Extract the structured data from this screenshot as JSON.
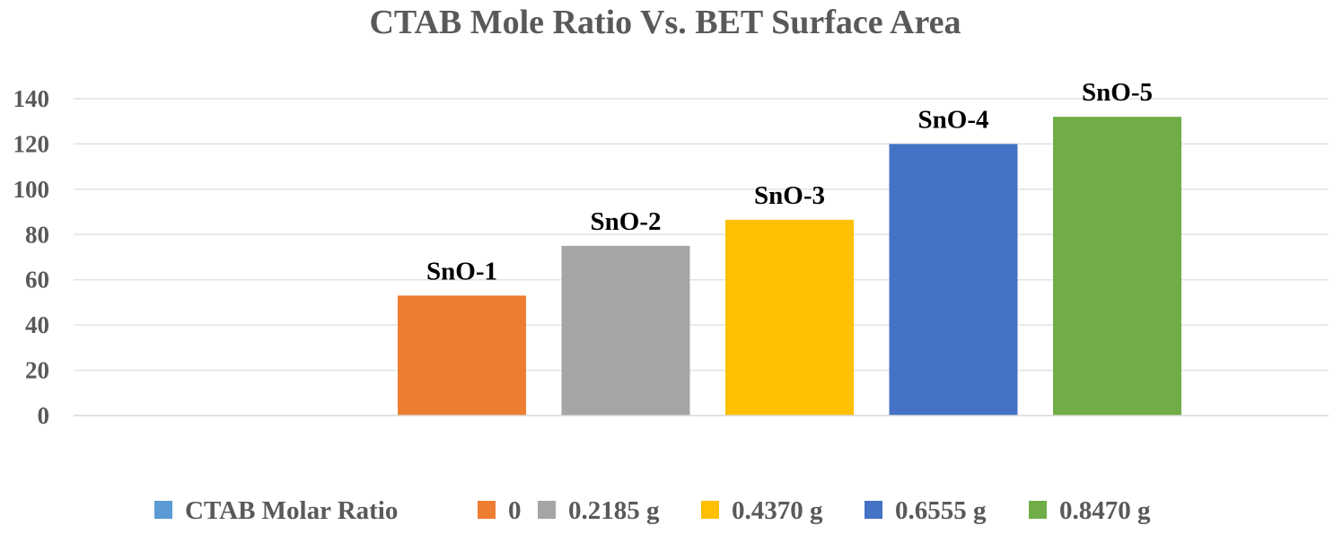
{
  "chart_data": {
    "type": "bar",
    "title": "CTAB Mole Ratio Vs. BET Surface Area",
    "xlabel": "",
    "ylabel": "",
    "ylim": [
      0,
      140
    ],
    "yticks": [
      0,
      20,
      40,
      60,
      80,
      100,
      120,
      140
    ],
    "grid": true,
    "legend_position": "bottom",
    "categories": [
      ""
    ],
    "series": [
      {
        "name": "CTAB Molar Ratio",
        "values": [
          0
        ],
        "color": "#5B9BD5",
        "label": ""
      },
      {
        "name": "0",
        "values": [
          53
        ],
        "color": "#ED7D31",
        "label": "SnO-1"
      },
      {
        "name": "0.2185 g",
        "values": [
          75
        ],
        "color": "#A5A5A5",
        "label": "SnO-2"
      },
      {
        "name": "0.4370 g",
        "values": [
          86.5
        ],
        "color": "#FFC000",
        "label": "SnO-3"
      },
      {
        "name": "0.6555 g",
        "values": [
          120
        ],
        "color": "#4472C4",
        "label": "SnO-4"
      },
      {
        "name": "0.8470 g",
        "values": [
          132
        ],
        "color": "#70AD47",
        "label": "SnO-5"
      }
    ]
  }
}
